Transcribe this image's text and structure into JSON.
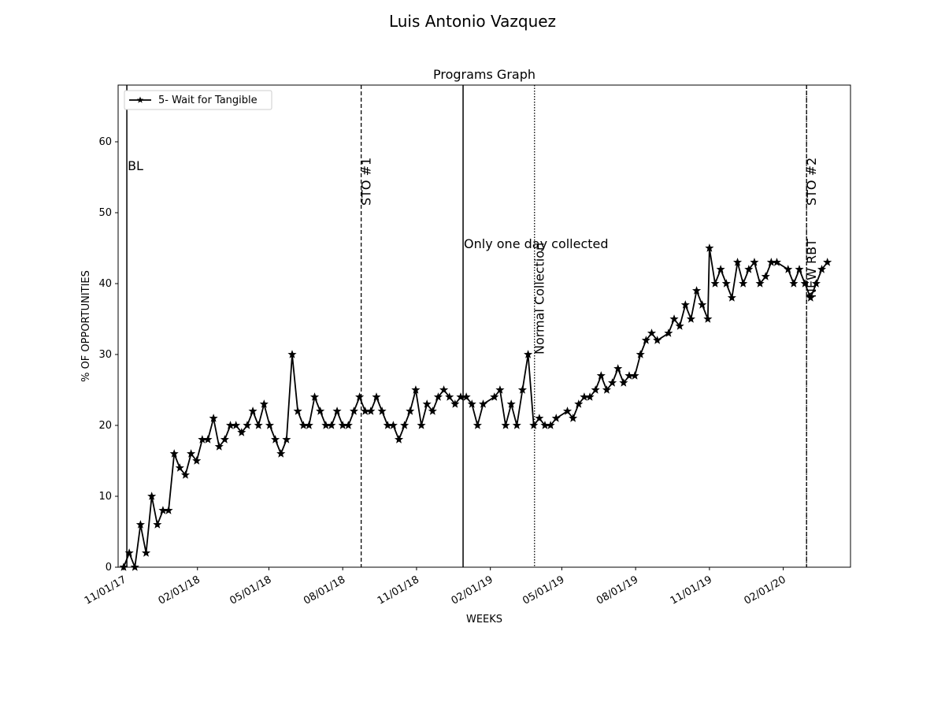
{
  "figure": {
    "suptitle": "Luis Antonio  Vazquez"
  },
  "chart_data": {
    "type": "line",
    "title": "Programs Graph",
    "xlabel": "WEEKS",
    "ylabel": "% OF OPPORTUNITIES",
    "x_start": "2017-11-01",
    "x_end": "2020-04-13",
    "ylim": [
      0,
      68
    ],
    "yticks": [
      0,
      10,
      20,
      30,
      40,
      50,
      60
    ],
    "xticks": [
      {
        "label": "11/01/17",
        "date": "2017-11-01"
      },
      {
        "label": "02/01/18",
        "date": "2018-02-01"
      },
      {
        "label": "05/01/18",
        "date": "2018-05-01"
      },
      {
        "label": "08/01/18",
        "date": "2018-08-01"
      },
      {
        "label": "11/01/18",
        "date": "2018-11-01"
      },
      {
        "label": "02/01/19",
        "date": "2019-02-01"
      },
      {
        "label": "05/01/19",
        "date": "2019-05-01"
      },
      {
        "label": "08/01/19",
        "date": "2019-08-01"
      },
      {
        "label": "11/01/19",
        "date": "2019-11-01"
      },
      {
        "label": "02/01/20",
        "date": "2020-02-01"
      }
    ],
    "grid": false,
    "legend_position": "top-left",
    "series": [
      {
        "name": "5- Wait for Tangible",
        "color": "#000000",
        "marker": "star",
        "points": [
          {
            "x": "2017-11-01",
            "y": 0
          },
          {
            "x": "2017-11-08",
            "y": 2
          },
          {
            "x": "2017-11-15",
            "y": 0
          },
          {
            "x": "2017-11-22",
            "y": 6
          },
          {
            "x": "2017-11-29",
            "y": 2
          },
          {
            "x": "2017-12-06",
            "y": 10
          },
          {
            "x": "2017-12-13",
            "y": 6
          },
          {
            "x": "2017-12-20",
            "y": 8
          },
          {
            "x": "2017-12-27",
            "y": 8
          },
          {
            "x": "2018-01-03",
            "y": 16
          },
          {
            "x": "2018-01-10",
            "y": 14
          },
          {
            "x": "2018-01-17",
            "y": 13
          },
          {
            "x": "2018-01-24",
            "y": 16
          },
          {
            "x": "2018-01-31",
            "y": 15
          },
          {
            "x": "2018-02-07",
            "y": 18
          },
          {
            "x": "2018-02-14",
            "y": 18
          },
          {
            "x": "2018-02-21",
            "y": 21
          },
          {
            "x": "2018-02-28",
            "y": 17
          },
          {
            "x": "2018-03-07",
            "y": 18
          },
          {
            "x": "2018-03-14",
            "y": 20
          },
          {
            "x": "2018-03-21",
            "y": 20
          },
          {
            "x": "2018-03-28",
            "y": 19
          },
          {
            "x": "2018-04-04",
            "y": 20
          },
          {
            "x": "2018-04-11",
            "y": 22
          },
          {
            "x": "2018-04-18",
            "y": 20
          },
          {
            "x": "2018-04-25",
            "y": 23
          },
          {
            "x": "2018-05-02",
            "y": 20
          },
          {
            "x": "2018-05-09",
            "y": 18
          },
          {
            "x": "2018-05-16",
            "y": 16
          },
          {
            "x": "2018-05-23",
            "y": 18
          },
          {
            "x": "2018-05-30",
            "y": 30
          },
          {
            "x": "2018-06-06",
            "y": 22
          },
          {
            "x": "2018-06-13",
            "y": 20
          },
          {
            "x": "2018-06-20",
            "y": 20
          },
          {
            "x": "2018-06-27",
            "y": 24
          },
          {
            "x": "2018-07-04",
            "y": 22
          },
          {
            "x": "2018-07-11",
            "y": 20
          },
          {
            "x": "2018-07-18",
            "y": 20
          },
          {
            "x": "2018-07-25",
            "y": 22
          },
          {
            "x": "2018-08-01",
            "y": 20
          },
          {
            "x": "2018-08-08",
            "y": 20
          },
          {
            "x": "2018-08-15",
            "y": 22
          },
          {
            "x": "2018-08-22",
            "y": 24
          },
          {
            "x": "2018-08-29",
            "y": 22
          },
          {
            "x": "2018-09-05",
            "y": 22
          },
          {
            "x": "2018-09-12",
            "y": 24
          },
          {
            "x": "2018-09-19",
            "y": 22
          },
          {
            "x": "2018-09-26",
            "y": 20
          },
          {
            "x": "2018-10-03",
            "y": 20
          },
          {
            "x": "2018-10-10",
            "y": 18
          },
          {
            "x": "2018-10-17",
            "y": 20
          },
          {
            "x": "2018-10-24",
            "y": 22
          },
          {
            "x": "2018-10-31",
            "y": 25
          },
          {
            "x": "2018-11-07",
            "y": 20
          },
          {
            "x": "2018-11-14",
            "y": 23
          },
          {
            "x": "2018-11-21",
            "y": 22
          },
          {
            "x": "2018-11-28",
            "y": 24
          },
          {
            "x": "2018-12-05",
            "y": 25
          },
          {
            "x": "2018-12-12",
            "y": 24
          },
          {
            "x": "2018-12-19",
            "y": 23
          },
          {
            "x": "2018-12-26",
            "y": 24
          },
          {
            "x": "2019-01-02",
            "y": 24
          },
          {
            "x": "2019-01-09",
            "y": 23
          },
          {
            "x": "2019-01-16",
            "y": 20
          },
          {
            "x": "2019-01-23",
            "y": 23
          },
          {
            "x": "2019-02-06",
            "y": 24
          },
          {
            "x": "2019-02-13",
            "y": 25
          },
          {
            "x": "2019-02-20",
            "y": 20
          },
          {
            "x": "2019-02-27",
            "y": 23
          },
          {
            "x": "2019-03-06",
            "y": 20
          },
          {
            "x": "2019-03-13",
            "y": 25
          },
          {
            "x": "2019-03-20",
            "y": 30
          },
          {
            "x": "2019-03-27",
            "y": 20
          },
          {
            "x": "2019-04-03",
            "y": 21
          },
          {
            "x": "2019-04-10",
            "y": 20
          },
          {
            "x": "2019-04-17",
            "y": 20
          },
          {
            "x": "2019-04-24",
            "y": 21
          },
          {
            "x": "2019-05-08",
            "y": 22
          },
          {
            "x": "2019-05-15",
            "y": 21
          },
          {
            "x": "2019-05-22",
            "y": 23
          },
          {
            "x": "2019-05-29",
            "y": 24
          },
          {
            "x": "2019-06-05",
            "y": 24
          },
          {
            "x": "2019-06-12",
            "y": 25
          },
          {
            "x": "2019-06-19",
            "y": 27
          },
          {
            "x": "2019-06-26",
            "y": 25
          },
          {
            "x": "2019-07-03",
            "y": 26
          },
          {
            "x": "2019-07-10",
            "y": 28
          },
          {
            "x": "2019-07-17",
            "y": 26
          },
          {
            "x": "2019-07-24",
            "y": 27
          },
          {
            "x": "2019-07-31",
            "y": 27
          },
          {
            "x": "2019-08-07",
            "y": 30
          },
          {
            "x": "2019-08-14",
            "y": 32
          },
          {
            "x": "2019-08-21",
            "y": 33
          },
          {
            "x": "2019-08-28",
            "y": 32
          },
          {
            "x": "2019-09-11",
            "y": 33
          },
          {
            "x": "2019-09-18",
            "y": 35
          },
          {
            "x": "2019-09-25",
            "y": 34
          },
          {
            "x": "2019-10-02",
            "y": 37
          },
          {
            "x": "2019-10-09",
            "y": 35
          },
          {
            "x": "2019-10-16",
            "y": 39
          },
          {
            "x": "2019-10-23",
            "y": 37
          },
          {
            "x": "2019-10-30",
            "y": 35
          },
          {
            "x": "2019-11-01",
            "y": 45
          },
          {
            "x": "2019-11-08",
            "y": 40
          },
          {
            "x": "2019-11-15",
            "y": 42
          },
          {
            "x": "2019-11-22",
            "y": 40
          },
          {
            "x": "2019-11-29",
            "y": 38
          },
          {
            "x": "2019-12-06",
            "y": 43
          },
          {
            "x": "2019-12-13",
            "y": 40
          },
          {
            "x": "2019-12-20",
            "y": 42
          },
          {
            "x": "2019-12-27",
            "y": 43
          },
          {
            "x": "2020-01-03",
            "y": 40
          },
          {
            "x": "2020-01-10",
            "y": 41
          },
          {
            "x": "2020-01-17",
            "y": 43
          },
          {
            "x": "2020-01-24",
            "y": 43
          },
          {
            "x": "2020-02-07",
            "y": 42
          },
          {
            "x": "2020-02-14",
            "y": 40
          },
          {
            "x": "2020-02-21",
            "y": 42
          },
          {
            "x": "2020-02-28",
            "y": 40
          },
          {
            "x": "2020-03-06",
            "y": 38
          },
          {
            "x": "2020-03-13",
            "y": 40
          },
          {
            "x": "2020-03-20",
            "y": 42
          },
          {
            "x": "2020-03-27",
            "y": 43
          }
        ]
      }
    ],
    "phase_lines": [
      {
        "date": "2017-11-05",
        "style": "solid",
        "label": "BL",
        "label_orientation": "horizontal",
        "label_y": 56
      },
      {
        "date": "2018-08-24",
        "style": "dashed",
        "label": "STO #1",
        "label_orientation": "vertical",
        "label_y": 51
      },
      {
        "date": "2018-12-29",
        "style": "solid",
        "label": "Only one day collected",
        "label_orientation": "horizontal",
        "label_y": 45
      },
      {
        "date": "2019-03-28",
        "style": "dotted",
        "label": "Normal Collection",
        "label_orientation": "vertical",
        "label_y": 30
      },
      {
        "date": "2020-03-01",
        "style": "dashed",
        "label": "STO #2",
        "label_orientation": "vertical",
        "label_y": 51
      },
      {
        "date": "2020-03-01",
        "style": "dotted",
        "label": "NEW RBT",
        "label_orientation": "vertical",
        "label_y": 38
      }
    ]
  }
}
